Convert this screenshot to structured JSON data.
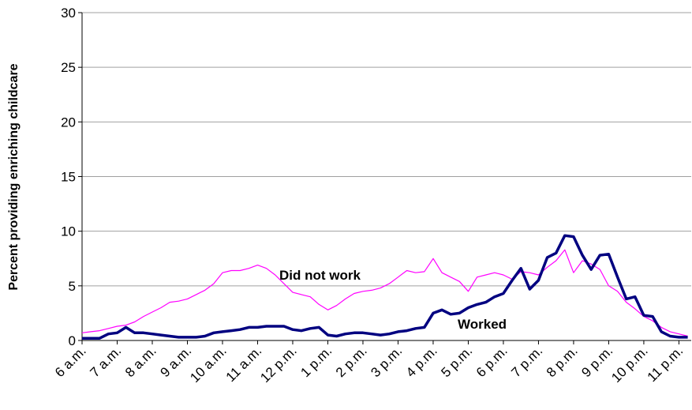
{
  "chart_data": {
    "type": "line",
    "y_label": "Percent providing enriching childcare",
    "annotations": [
      "Did not work",
      "Worked"
    ],
    "x": [
      6,
      6.25,
      6.5,
      6.75,
      7,
      7.25,
      7.5,
      7.75,
      8,
      8.25,
      8.5,
      8.75,
      9,
      9.25,
      9.5,
      9.75,
      10,
      10.25,
      10.5,
      10.75,
      11,
      11.25,
      11.5,
      11.75,
      12,
      12.25,
      12.5,
      12.75,
      13,
      13.25,
      13.5,
      13.75,
      14,
      14.25,
      14.5,
      14.75,
      15,
      15.25,
      15.5,
      15.75,
      16,
      16.25,
      16.5,
      16.75,
      17,
      17.25,
      17.5,
      17.75,
      18,
      18.25,
      18.5,
      18.75,
      19,
      19.25,
      19.5,
      19.75,
      20,
      20.25,
      20.5,
      20.75,
      21,
      21.25,
      21.5,
      21.75,
      22,
      22.25,
      22.5,
      22.75,
      23,
      23.25
    ],
    "series": [
      {
        "name": "Worked",
        "color": "#000080",
        "width": 3.5,
        "values": [
          0.2,
          0.2,
          0.2,
          0.6,
          0.7,
          1.2,
          0.7,
          0.7,
          0.6,
          0.5,
          0.4,
          0.3,
          0.3,
          0.3,
          0.4,
          0.7,
          0.8,
          0.9,
          1.0,
          1.2,
          1.2,
          1.3,
          1.3,
          1.3,
          1.0,
          0.9,
          1.1,
          1.2,
          0.5,
          0.4,
          0.6,
          0.7,
          0.7,
          0.6,
          0.5,
          0.6,
          0.8,
          0.9,
          1.1,
          1.2,
          2.5,
          2.8,
          2.4,
          2.5,
          3.0,
          3.3,
          3.5,
          4.0,
          4.3,
          5.5,
          6.6,
          4.7,
          5.5,
          7.6,
          8.0,
          9.6,
          9.5,
          7.8,
          6.5,
          7.8,
          7.9,
          5.8,
          3.8,
          4.0,
          2.3,
          2.2,
          0.8,
          0.4,
          0.3,
          0.3
        ]
      },
      {
        "name": "Did not work",
        "color": "#ff00ff",
        "width": 1.2,
        "values": [
          0.7,
          0.8,
          0.9,
          1.1,
          1.3,
          1.4,
          1.7,
          2.2,
          2.6,
          3.0,
          3.5,
          3.6,
          3.8,
          4.2,
          4.6,
          5.2,
          6.2,
          6.4,
          6.4,
          6.6,
          6.9,
          6.6,
          6.0,
          5.2,
          4.4,
          4.2,
          4.0,
          3.3,
          2.8,
          3.2,
          3.8,
          4.3,
          4.5,
          4.6,
          4.8,
          5.2,
          5.8,
          6.4,
          6.2,
          6.3,
          7.5,
          6.2,
          5.8,
          5.4,
          4.5,
          5.8,
          6.0,
          6.2,
          6.0,
          5.6,
          6.3,
          6.2,
          6.0,
          6.7,
          7.3,
          8.3,
          6.2,
          7.3,
          7.0,
          6.5,
          5.0,
          4.5,
          3.5,
          2.9,
          2.2,
          1.8,
          1.2,
          0.8,
          0.6,
          0.4
        ]
      }
    ],
    "xlim": [
      6,
      23.35
    ],
    "xticks": [
      {
        "value": 6,
        "label": "6 a.m."
      },
      {
        "value": 7,
        "label": "7 a.m."
      },
      {
        "value": 8,
        "label": "8 a.m."
      },
      {
        "value": 9,
        "label": "9 a.m."
      },
      {
        "value": 10,
        "label": "10 a.m."
      },
      {
        "value": 11,
        "label": "11 a.m."
      },
      {
        "value": 12,
        "label": "12 p.m."
      },
      {
        "value": 13,
        "label": "1 p.m."
      },
      {
        "value": 14,
        "label": "2 p.m."
      },
      {
        "value": 15,
        "label": "3 p.m."
      },
      {
        "value": 16,
        "label": "4 p.m."
      },
      {
        "value": 17,
        "label": "5 p.m."
      },
      {
        "value": 18,
        "label": "6 p.m."
      },
      {
        "value": 19,
        "label": "7 p.m."
      },
      {
        "value": 20,
        "label": "8 p.m."
      },
      {
        "value": 21,
        "label": "9 p.m."
      },
      {
        "value": 22,
        "label": "10 p.m."
      },
      {
        "value": 23,
        "label": "11 p.m."
      }
    ],
    "ylim": [
      0,
      30
    ],
    "yticks": [
      0,
      5,
      10,
      15,
      20,
      25,
      30
    ],
    "grid": true
  }
}
